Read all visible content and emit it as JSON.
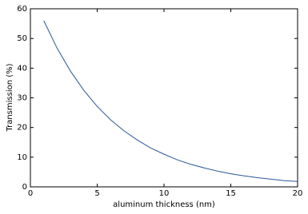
{
  "chart_data": {
    "type": "line",
    "x_label": "aluminum thickness (nm)",
    "y_label": "Transmission (%)",
    "x": [
      1,
      2,
      3,
      4,
      5,
      6,
      7,
      8,
      9,
      10,
      11,
      12,
      13,
      14,
      15,
      16,
      17,
      18,
      19,
      20
    ],
    "series": [
      {
        "color": "#2a5797",
        "values": [
          56,
          46.7,
          39.0,
          32.5,
          27.1,
          22.6,
          18.9,
          15.8,
          13.1,
          11.0,
          9.1,
          7.6,
          6.4,
          5.3,
          4.4,
          3.7,
          3.1,
          2.6,
          2.1,
          1.8
        ]
      }
    ],
    "xlim": [
      0,
      20
    ],
    "xticks": [
      0,
      5,
      10,
      15,
      20
    ],
    "ylim": [
      0,
      60
    ],
    "yticks": [
      0,
      10,
      20,
      30,
      40,
      50,
      60
    ],
    "grid": false
  }
}
